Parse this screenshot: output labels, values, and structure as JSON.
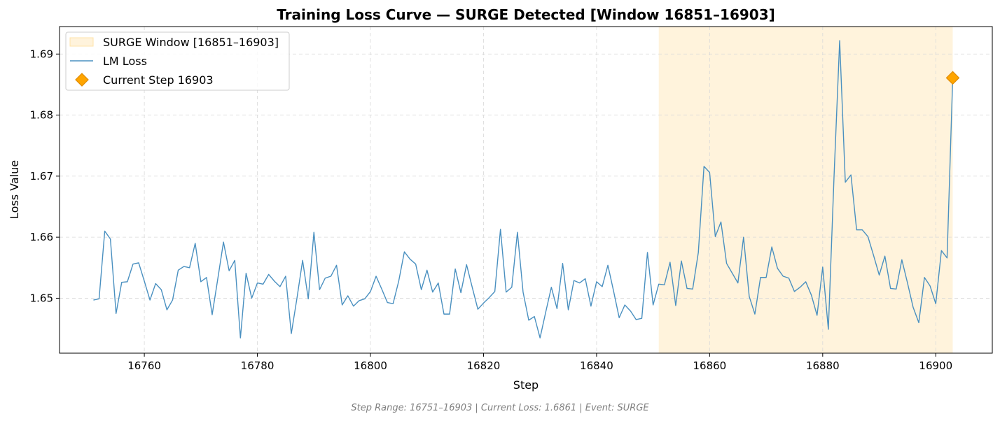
{
  "chart_data": {
    "type": "line",
    "title": "Training Loss Curve — SURGE Detected [Window 16851–16903]",
    "xlabel": "Step",
    "ylabel": "Loss Value",
    "xlim": [
      16745,
      16910
    ],
    "ylim": [
      1.641,
      1.6945
    ],
    "xticks": [
      16760,
      16780,
      16800,
      16820,
      16840,
      16860,
      16880,
      16900
    ],
    "yticks": [
      1.65,
      1.66,
      1.67,
      1.68,
      1.69
    ],
    "xtick_labels": [
      "16760",
      "16780",
      "16800",
      "16820",
      "16840",
      "16860",
      "16880",
      "16900"
    ],
    "ytick_labels": [
      "1.65",
      "1.66",
      "1.67",
      "1.68",
      "1.69"
    ],
    "grid": true,
    "legend_position": "top-left",
    "surge_window": {
      "name": "SURGE Window [16851–16903]",
      "start": 16851,
      "end": 16903,
      "color": "#fff3dc"
    },
    "series": [
      {
        "name": "LM Loss",
        "color": "#4a90c0",
        "x_start": 16751,
        "x_step": 1,
        "values": [
          1.6497,
          1.6499,
          1.661,
          1.6597,
          1.6475,
          1.6526,
          1.6527,
          1.6556,
          1.6558,
          1.6528,
          1.6497,
          1.6524,
          1.6514,
          1.6481,
          1.6497,
          1.6546,
          1.6552,
          1.655,
          1.659,
          1.6527,
          1.6534,
          1.6473,
          1.6532,
          1.6592,
          1.6545,
          1.6562,
          1.6435,
          1.6541,
          1.65,
          1.6525,
          1.6523,
          1.6539,
          1.6528,
          1.6519,
          1.6536,
          1.6442,
          1.65,
          1.6562,
          1.6499,
          1.6608,
          1.6514,
          1.6533,
          1.6536,
          1.6554,
          1.6489,
          1.6504,
          1.6487,
          1.6496,
          1.6499,
          1.6511,
          1.6536,
          1.6515,
          1.6493,
          1.6491,
          1.6528,
          1.6576,
          1.6564,
          1.6556,
          1.6514,
          1.6546,
          1.651,
          1.6525,
          1.6474,
          1.6474,
          1.6548,
          1.6509,
          1.6555,
          1.6518,
          1.6482,
          1.6492,
          1.6501,
          1.6511,
          1.6613,
          1.651,
          1.6518,
          1.6608,
          1.651,
          1.6464,
          1.647,
          1.6435,
          1.6477,
          1.6518,
          1.6483,
          1.6557,
          1.6481,
          1.6529,
          1.6525,
          1.6532,
          1.6487,
          1.6527,
          1.6519,
          1.6554,
          1.6512,
          1.6468,
          1.6489,
          1.6479,
          1.6465,
          1.6467,
          1.6575,
          1.6489,
          1.6523,
          1.6522,
          1.6559,
          1.6488,
          1.6561,
          1.6516,
          1.6515,
          1.6575,
          1.6716,
          1.6706,
          1.6601,
          1.6625,
          1.6557,
          1.6541,
          1.6525,
          1.66,
          1.6503,
          1.6474,
          1.6534,
          1.6534,
          1.6584,
          1.6549,
          1.6536,
          1.6533,
          1.6511,
          1.6518,
          1.6527,
          1.6505,
          1.6472,
          1.6551,
          1.6449,
          1.6698,
          1.6922,
          1.669,
          1.6702,
          1.6612,
          1.6612,
          1.6601,
          1.657,
          1.6538,
          1.6569,
          1.6516,
          1.6515,
          1.6563,
          1.6525,
          1.6485,
          1.646,
          1.6534,
          1.652,
          1.6491,
          1.6578,
          1.6566,
          1.6861
        ]
      }
    ],
    "current_step": {
      "name": "Current Step 16903",
      "x": 16903,
      "y": 1.6861,
      "color": "#ffa500",
      "edge_color": "#e08c00",
      "marker": "diamond"
    },
    "footer": "Step Range: 16751–16903 | Current Loss: 1.6861 | Event: SURGE"
  }
}
